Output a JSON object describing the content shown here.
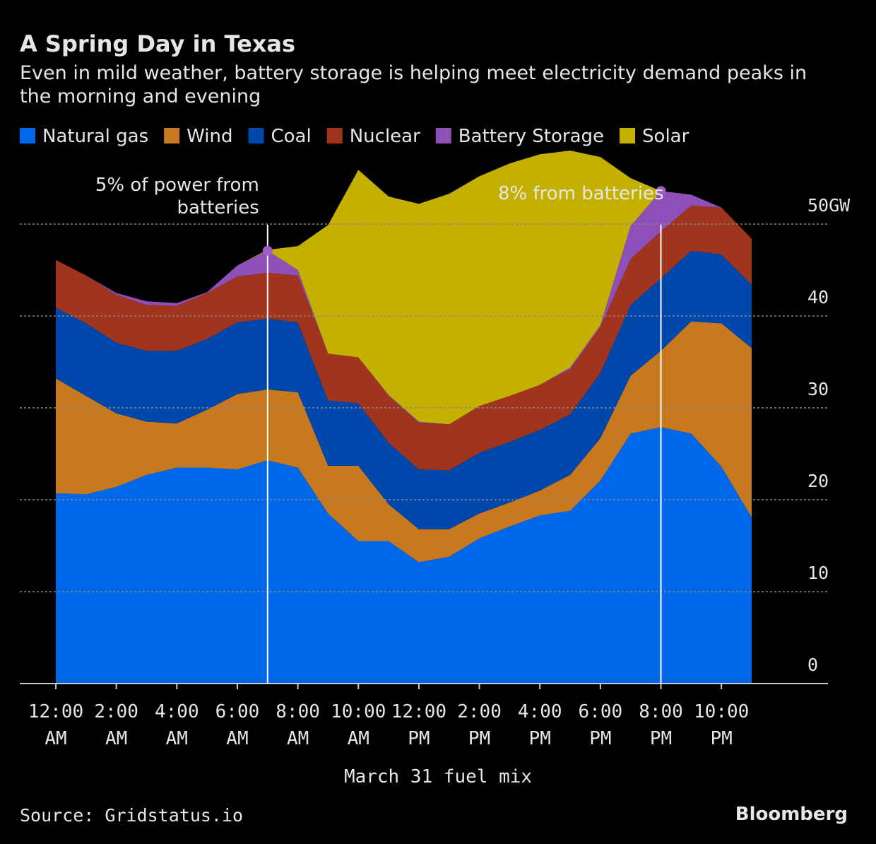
{
  "chart_data": {
    "type": "stacked-area",
    "title": "A Spring Day in Texas",
    "subtitle": "Even in mild weather, battery storage is helping meet electricity demand peaks in the morning and evening",
    "x_label": "March 31 fuel mix",
    "source": "Source: Gridstatus.io",
    "brand": "Bloomberg",
    "categories": [
      "12:00 AM",
      null,
      "2:00 AM",
      null,
      "4:00 AM",
      null,
      "6:00 AM",
      null,
      "8:00 AM",
      null,
      "10:00 AM",
      null,
      "12:00 PM",
      null,
      "2:00 PM",
      null,
      "4:00 PM",
      null,
      "6:00 PM",
      null,
      "8:00 PM",
      null,
      "10:00 PM",
      null
    ],
    "series": [
      {
        "name": "Natural gas",
        "color": "#0068e8",
        "values": [
          20.7,
          20.6,
          21.4,
          22.7,
          23.5,
          23.5,
          23.3,
          24.3,
          23.5,
          18.5,
          15.5,
          15.5,
          13.2,
          13.8,
          15.8,
          17.1,
          18.3,
          18.8,
          22.1,
          27.2,
          27.9,
          27.2,
          23.6,
          18.1
        ]
      },
      {
        "name": "Wind",
        "color": "#c8781e",
        "values": [
          12.5,
          10.7,
          8.0,
          5.8,
          4.8,
          6.3,
          8.2,
          7.7,
          8.2,
          5.2,
          8.2,
          4.0,
          3.6,
          3.0,
          2.7,
          2.6,
          2.7,
          3.9,
          4.6,
          6.3,
          8.3,
          12.2,
          15.6,
          18.4
        ]
      },
      {
        "name": "Coal",
        "color": "#0047ab",
        "values": [
          7.7,
          7.9,
          7.7,
          7.7,
          7.9,
          7.7,
          7.8,
          7.7,
          7.6,
          7.1,
          6.8,
          6.7,
          6.5,
          6.4,
          6.6,
          6.6,
          6.6,
          6.6,
          7.1,
          7.7,
          7.9,
          7.7,
          7.5,
          6.9
        ]
      },
      {
        "name": "Nuclear",
        "color": "#a0341c",
        "values": [
          5.2,
          5.2,
          5.2,
          5.0,
          4.9,
          5.0,
          5.0,
          5.0,
          5.1,
          5.1,
          5.0,
          5.1,
          5.1,
          5.0,
          5.1,
          5.0,
          4.9,
          4.9,
          5.0,
          5.0,
          5.1,
          4.9,
          5.1,
          5.0
        ]
      },
      {
        "name": "Battery Storage",
        "color": "#8e4fb8",
        "values": [
          0,
          0,
          0.2,
          0.4,
          0.3,
          0.1,
          1.2,
          2.4,
          0.6,
          0,
          0,
          0.1,
          0.1,
          0,
          0,
          0,
          0,
          0.2,
          0.2,
          3.6,
          4.4,
          1.2,
          0,
          0
        ]
      },
      {
        "name": "Solar",
        "color": "#c4b000",
        "values": [
          0,
          0,
          0,
          0,
          0,
          0,
          0,
          0.1,
          2.6,
          14.0,
          20.4,
          21.6,
          23.7,
          25.1,
          25.0,
          25.3,
          25.1,
          23.6,
          18.3,
          5.2,
          0,
          0,
          0,
          0
        ]
      }
    ],
    "annotations": [
      "5% of power from batteries",
      "8% from batteries"
    ],
    "ylim": [
      0,
      60
    ],
    "yticks": [
      0,
      10,
      20,
      30,
      40,
      {
        "value": 50,
        "label": "50GW"
      }
    ],
    "grid": true
  }
}
